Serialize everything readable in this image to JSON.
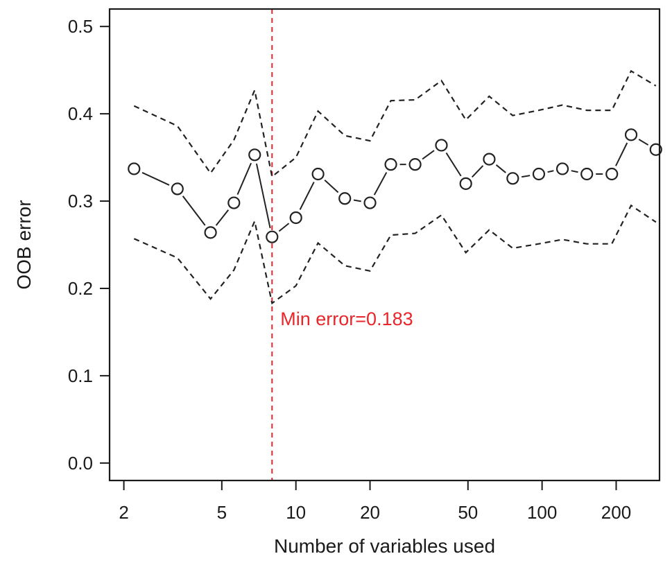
{
  "chart_data": {
    "type": "line",
    "xlabel": "Number of variables used",
    "ylabel": "OOB error",
    "x_scale": "log",
    "xlim": [
      1.75,
      300
    ],
    "ylim": [
      -0.02,
      0.52
    ],
    "x_ticks": [
      2,
      5,
      10,
      20,
      50,
      100,
      200
    ],
    "x_tick_labels": [
      "2",
      "5",
      "10",
      "20",
      "50",
      "100",
      "200"
    ],
    "y_ticks": [
      0.0,
      0.1,
      0.2,
      0.3,
      0.4,
      0.5
    ],
    "y_tick_labels": [
      "0.0",
      "0.1",
      "0.2",
      "0.3",
      "0.4",
      "0.5"
    ],
    "grid": false,
    "x": [
      2.2,
      3.3,
      4.5,
      5.6,
      6.8,
      8,
      10,
      12.3,
      15.8,
      20,
      24.3,
      30.5,
      39,
      49,
      61,
      76,
      97,
      121,
      152,
      192,
      230,
      290
    ],
    "series": [
      {
        "style": "solid-circles",
        "values": [
          0.337,
          0.314,
          0.264,
          0.298,
          0.353,
          0.259,
          0.281,
          0.331,
          0.303,
          0.298,
          0.342,
          0.342,
          0.364,
          0.32,
          0.348,
          0.326,
          0.331,
          0.337,
          0.331,
          0.331,
          0.376,
          0.359
        ]
      },
      {
        "style": "dashed-upper",
        "values": [
          0.409,
          0.386,
          0.332,
          0.37,
          0.427,
          0.328,
          0.35,
          0.403,
          0.375,
          0.369,
          0.415,
          0.416,
          0.438,
          0.393,
          0.42,
          0.398,
          0.404,
          0.41,
          0.404,
          0.404,
          0.449,
          0.432
        ]
      },
      {
        "style": "dashed-lower",
        "values": [
          0.257,
          0.235,
          0.188,
          0.221,
          0.277,
          0.183,
          0.203,
          0.252,
          0.226,
          0.22,
          0.261,
          0.263,
          0.284,
          0.241,
          0.267,
          0.246,
          0.251,
          0.256,
          0.251,
          0.251,
          0.295,
          0.276
        ]
      }
    ],
    "vline": {
      "x": 8,
      "color": "#e8262b",
      "style": "dashed"
    },
    "annotation": {
      "text": "Min error=0.183",
      "x": 8,
      "y": 0.165,
      "color": "#e8262b"
    },
    "line_color": "#222222"
  }
}
